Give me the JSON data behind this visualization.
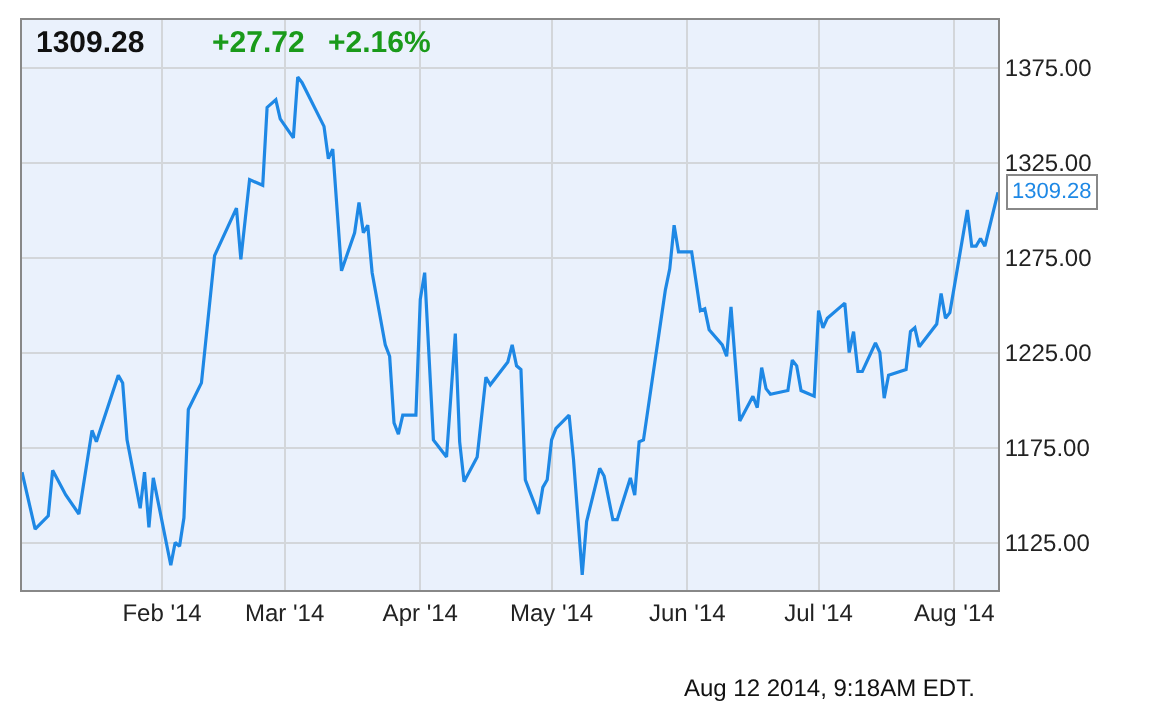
{
  "chart_data": {
    "type": "line",
    "title": "1309.28",
    "annotations": [
      "+27.72",
      "+2.16%",
      {
        "text": "1309.28",
        "x": "2014-08-11",
        "y": 1309.28
      },
      "Aug 12 2014, 9:18AM EDT."
    ],
    "x": [
      "2013-12-31",
      "2014-01-03",
      "2014-01-06",
      "2014-01-07",
      "2014-01-10",
      "2014-01-13",
      "2014-01-16",
      "2014-01-17",
      "2014-01-22",
      "2014-01-23",
      "2014-01-24",
      "2014-01-27",
      "2014-01-28",
      "2014-01-29",
      "2014-01-30",
      "2014-02-03",
      "2014-02-04",
      "2014-02-05",
      "2014-02-06",
      "2014-02-07",
      "2014-02-10",
      "2014-02-13",
      "2014-02-18",
      "2014-02-19",
      "2014-02-21",
      "2014-02-24",
      "2014-02-25",
      "2014-02-27",
      "2014-02-28",
      "2014-03-03",
      "2014-03-04",
      "2014-03-05",
      "2014-03-10",
      "2014-03-11",
      "2014-03-12",
      "2014-03-14",
      "2014-03-17",
      "2014-03-18",
      "2014-03-19",
      "2014-03-20",
      "2014-03-21",
      "2014-03-24",
      "2014-03-25",
      "2014-03-26",
      "2014-03-27",
      "2014-03-28",
      "2014-03-31",
      "2014-04-01",
      "2014-04-02",
      "2014-04-04",
      "2014-04-07",
      "2014-04-09",
      "2014-04-10",
      "2014-04-11",
      "2014-04-14",
      "2014-04-16",
      "2014-04-17",
      "2014-04-21",
      "2014-04-22",
      "2014-04-23",
      "2014-04-24",
      "2014-04-25",
      "2014-04-28",
      "2014-04-29",
      "2014-04-30",
      "2014-05-01",
      "2014-05-02",
      "2014-05-05",
      "2014-05-06",
      "2014-05-08",
      "2014-05-09",
      "2014-05-12",
      "2014-05-13",
      "2014-05-15",
      "2014-05-16",
      "2014-05-19",
      "2014-05-20",
      "2014-05-21",
      "2014-05-22",
      "2014-05-27",
      "2014-05-28",
      "2014-05-29",
      "2014-05-30",
      "2014-06-02",
      "2014-06-04",
      "2014-06-05",
      "2014-06-06",
      "2014-06-09",
      "2014-06-10",
      "2014-06-11",
      "2014-06-13",
      "2014-06-16",
      "2014-06-17",
      "2014-06-18",
      "2014-06-19",
      "2014-06-20",
      "2014-06-24",
      "2014-06-25",
      "2014-06-26",
      "2014-06-27",
      "2014-06-30",
      "2014-07-01",
      "2014-07-02",
      "2014-07-03",
      "2014-07-07",
      "2014-07-08",
      "2014-07-09",
      "2014-07-10",
      "2014-07-11",
      "2014-07-14",
      "2014-07-15",
      "2014-07-16",
      "2014-07-17",
      "2014-07-21",
      "2014-07-22",
      "2014-07-23",
      "2014-07-24",
      "2014-07-28",
      "2014-07-29",
      "2014-07-30",
      "2014-07-31",
      "2014-08-04",
      "2014-08-05",
      "2014-08-06",
      "2014-08-07",
      "2014-08-08",
      "2014-08-11"
    ],
    "series": [
      {
        "color": "#1e88e5",
        "values": [
          1162,
          1132,
          1139,
          1163,
          1150,
          1140,
          1184,
          1178,
          1213,
          1209,
          1179,
          1143,
          1162,
          1133,
          1159,
          1113,
          1125,
          1123,
          1138,
          1195,
          1209,
          1276,
          1301,
          1274,
          1316,
          1313,
          1354,
          1358,
          1348,
          1338,
          1370,
          1367,
          1344,
          1327,
          1332,
          1268,
          1288,
          1304,
          1288,
          1292,
          1267,
          1229,
          1223,
          1188,
          1182,
          1192,
          1192,
          1253,
          1267,
          1179,
          1170,
          1235,
          1178,
          1157,
          1170,
          1212,
          1208,
          1220,
          1229,
          1218,
          1216,
          1158,
          1140,
          1154,
          1158,
          1179,
          1185,
          1192,
          1169,
          1108,
          1136,
          1164,
          1160,
          1137,
          1137,
          1159,
          1150,
          1178,
          1179,
          1258,
          1269,
          1292,
          1278,
          1278,
          1247,
          1248,
          1237,
          1229,
          1223,
          1249,
          1189,
          1202,
          1196,
          1217,
          1206,
          1203,
          1205,
          1221,
          1218,
          1205,
          1202,
          1247,
          1238,
          1243,
          1251,
          1225,
          1236,
          1215,
          1215,
          1230,
          1225,
          1201,
          1213,
          1216,
          1236,
          1238,
          1228,
          1240,
          1256,
          1243,
          1246,
          1300,
          1281,
          1281,
          1285,
          1281,
          1309.28
        ]
      }
    ],
    "xlim": [
      "2013-12-31",
      "2014-08-11"
    ],
    "xticks": [
      {
        "value": "2014-02-01",
        "label": "Feb '14"
      },
      {
        "value": "2014-03-01",
        "label": "Mar '14"
      },
      {
        "value": "2014-04-01",
        "label": "Apr '14"
      },
      {
        "value": "2014-05-01",
        "label": "May '14"
      },
      {
        "value": "2014-06-01",
        "label": "Jun '14"
      },
      {
        "value": "2014-07-01",
        "label": "Jul '14"
      },
      {
        "value": "2014-08-01",
        "label": "Aug '14"
      }
    ],
    "ylim": [
      1100,
      1400
    ],
    "yticks": [
      {
        "value": 1125,
        "label": "1125.00"
      },
      {
        "value": 1175,
        "label": "1175.00"
      },
      {
        "value": 1225,
        "label": "1225.00"
      },
      {
        "value": 1275,
        "label": "1275.00"
      },
      {
        "value": 1325,
        "label": "1325.00"
      },
      {
        "value": 1375,
        "label": "1375.00"
      }
    ],
    "grid": true,
    "marker": "none",
    "line_style": "solid"
  }
}
